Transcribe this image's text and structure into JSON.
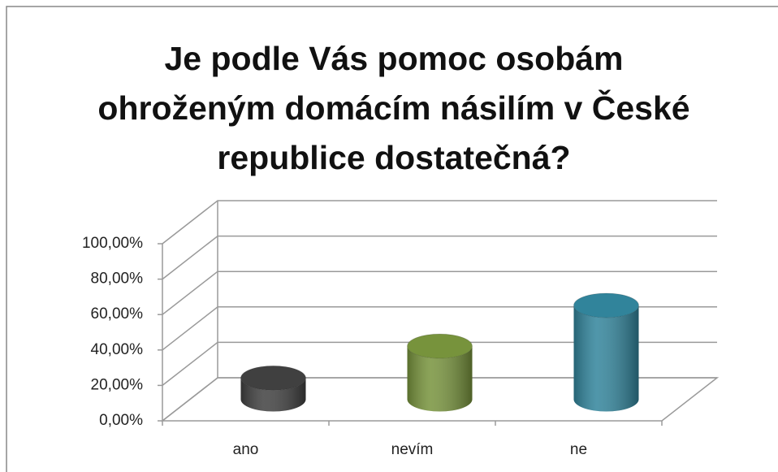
{
  "chart_data": {
    "type": "bar3d-cylinder",
    "title": "Je podle Vás pomoc osobám ohroženým domácím násilím v České republice dostatečná?",
    "categories": [
      "ano",
      "nevím",
      "ne"
    ],
    "values": [
      12,
      30,
      53
    ],
    "colors": [
      "#404040",
      "#77933c",
      "#31849b"
    ],
    "ylim": [
      0,
      100
    ],
    "yticks": [
      {
        "value": 0,
        "label": "0,00%"
      },
      {
        "value": 20,
        "label": "20,00%"
      },
      {
        "value": 40,
        "label": "40,00%"
      },
      {
        "value": 60,
        "label": "60,00%"
      },
      {
        "value": 80,
        "label": "80,00%"
      },
      {
        "value": 100,
        "label": "100,00%"
      }
    ],
    "grid": true
  }
}
